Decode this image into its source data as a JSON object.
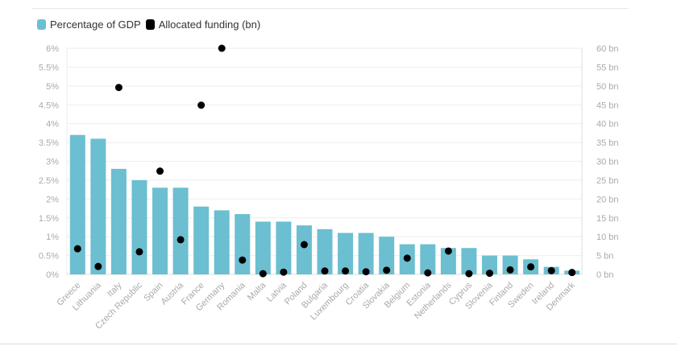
{
  "chart_data": {
    "type": "bar",
    "categories": [
      "Greece",
      "Lithuania",
      "Italy",
      "Czech Republic",
      "Spain",
      "Austria",
      "France",
      "Germany",
      "Romania",
      "Malta",
      "Latvia",
      "Poland",
      "Bulgaria",
      "Luxembourg",
      "Croatia",
      "Slovakia",
      "Belgium",
      "Estonia",
      "Netherlands",
      "Cyprus",
      "Slovenia",
      "Finland",
      "Sweden",
      "Ireland",
      "Denmark"
    ],
    "series": [
      {
        "name": "Percentage of GDP",
        "type": "bar",
        "axis": "left",
        "color": "#6bbfd1",
        "values": [
          3.7,
          3.6,
          2.8,
          2.5,
          2.3,
          2.3,
          1.8,
          1.7,
          1.6,
          1.4,
          1.4,
          1.3,
          1.2,
          1.1,
          1.1,
          1.0,
          0.8,
          0.8,
          0.7,
          0.7,
          0.5,
          0.5,
          0.4,
          0.2,
          0.1
        ]
      },
      {
        "name": "Allocated funding (bn)",
        "type": "scatter",
        "axis": "right",
        "color": "#000000",
        "values": [
          6.8,
          2.1,
          49.6,
          6.0,
          27.4,
          9.2,
          44.9,
          60,
          3.8,
          0.2,
          0.6,
          7.9,
          0.9,
          0.9,
          0.7,
          1.1,
          4.3,
          0.4,
          6.2,
          0.2,
          0.3,
          1.2,
          2.0,
          1.0,
          0.5
        ]
      }
    ],
    "ylim_left": [
      0,
      6
    ],
    "ylim_right": [
      0,
      60
    ],
    "left_ticks": [
      "0%",
      "0.5%",
      "1%",
      "1.5%",
      "2%",
      "2.5%",
      "3%",
      "3.5%",
      "4%",
      "4.5%",
      "5%",
      "5.5%",
      "6%"
    ],
    "right_ticks": [
      "0 bn",
      "5 bn",
      "10 bn",
      "15 bn",
      "20 bn",
      "25 bn",
      "30 bn",
      "35 bn",
      "40 bn",
      "45 bn",
      "50 bn",
      "55 bn",
      "60 bn"
    ],
    "grid": true,
    "legend_position": "top-left"
  }
}
